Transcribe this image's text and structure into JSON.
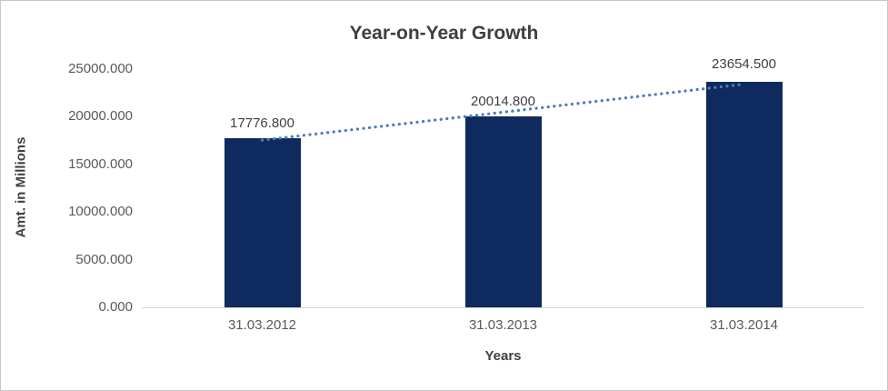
{
  "chart_data": {
    "type": "bar",
    "title": "Year-on-Year Growth",
    "categories": [
      "31.03.2012",
      "31.03.2013",
      "31.03.2014"
    ],
    "values": [
      17776.8,
      20014.8,
      23654.5
    ],
    "data_labels": [
      "17776.800",
      "20014.800",
      "23654.500"
    ],
    "xlabel": "Years",
    "ylabel": "Amt. in Millions",
    "ylim": [
      0,
      25000
    ],
    "ytick_labels": [
      "0.000",
      "5000.000",
      "10000.000",
      "15000.000",
      "20000.000",
      "25000.000"
    ],
    "ytick_values": [
      0,
      5000,
      10000,
      15000,
      20000,
      25000
    ],
    "grid": "off",
    "legend": "none",
    "trendline": "linear-dotted",
    "colors": {
      "bar": "#0f2a5e",
      "trendline": "#4a7ebb",
      "title_text": "#3f3f3f",
      "tick_text": "#595959",
      "axis_line": "#d6d6d6"
    }
  }
}
